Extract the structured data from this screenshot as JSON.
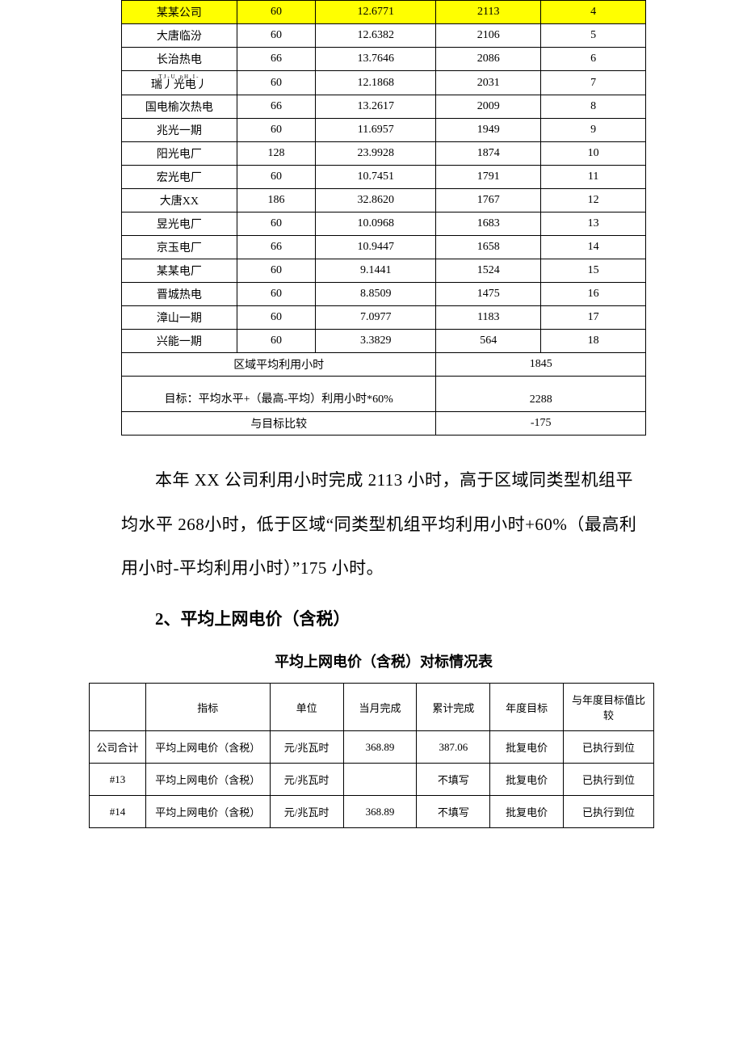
{
  "table1": {
    "rows": [
      {
        "name": "某某公司",
        "cap": "60",
        "gen": "12.6771",
        "hours": "2113",
        "rank": "4",
        "highlight": true
      },
      {
        "name": "大唐临汾",
        "cap": "60",
        "gen": "12.6382",
        "hours": "2106",
        "rank": "5"
      },
      {
        "name": "长治热电",
        "cap": "66",
        "gen": "13.7646",
        "hours": "2086",
        "rank": "6"
      },
      {
        "name_ruby": "TJ-U   pH I-",
        "name": "瑞丿光电丿",
        "cap": "60",
        "gen": "12.1868",
        "hours": "2031",
        "rank": "7"
      },
      {
        "name": "国电榆次热电",
        "cap": "66",
        "gen": "13.2617",
        "hours": "2009",
        "rank": "8"
      },
      {
        "name": "兆光一期",
        "cap": "60",
        "gen": "11.6957",
        "hours": "1949",
        "rank": "9"
      },
      {
        "name": "阳光电厂",
        "cap": "128",
        "gen": "23.9928",
        "hours": "1874",
        "rank": "10"
      },
      {
        "name": "宏光电厂",
        "cap": "60",
        "gen": "10.7451",
        "hours": "1791",
        "rank": "11"
      },
      {
        "name": "大唐XX",
        "cap": "186",
        "gen": "32.8620",
        "hours": "1767",
        "rank": "12"
      },
      {
        "name": "昱光电厂",
        "cap": "60",
        "gen": "10.0968",
        "hours": "1683",
        "rank": "13"
      },
      {
        "name": "京玉电厂",
        "cap": "66",
        "gen": "10.9447",
        "hours": "1658",
        "rank": "14"
      },
      {
        "name": "某某电厂",
        "cap": "60",
        "gen": "9.1441",
        "hours": "1524",
        "rank": "15"
      },
      {
        "name": "晋城热电",
        "cap": "60",
        "gen": "8.8509",
        "hours": "1475",
        "rank": "16"
      },
      {
        "name": "漳山一期",
        "cap": "60",
        "gen": "7.0977",
        "hours": "1183",
        "rank": "17"
      },
      {
        "name": "兴能一期",
        "cap": "60",
        "gen": "3.3829",
        "hours": "564",
        "rank": "18"
      }
    ],
    "summary": [
      {
        "label": "区域平均利用小时",
        "value": "1845",
        "tall": false
      },
      {
        "label": "目标：平均水平+（最高-平均）利用小时*60%",
        "value": "2288",
        "tall": true
      },
      {
        "label": "与目标比较",
        "value": "-175",
        "tall": false
      }
    ]
  },
  "paragraph": {
    "text": "本年 XX 公司利用小时完成 2113 小时，高于区域同类型机组平均水平 268小时，低于区域“同类型机组平均利用小时+60%（最高利用小时-平均利用小时）”175 小时。"
  },
  "section2": {
    "heading": "2、平均上网电价（含税）",
    "table_title": "平均上网电价（含税）对标情况表"
  },
  "table2": {
    "headers": [
      "",
      "指标",
      "单位",
      "当月完成",
      "累计完成",
      "年度目标",
      "与年度目标值比较"
    ],
    "rows": [
      {
        "c0": "公司合计",
        "c1": "平均上网电价（含税）",
        "c2": "元/兆瓦时",
        "c3": "368.89",
        "c4": "387.06",
        "c5": "批复电价",
        "c6": "已执行到位"
      },
      {
        "c0": "#13",
        "c1": "平均上网电价（含税）",
        "c2": "元/兆瓦时",
        "c3": "",
        "c4": "不填写",
        "c5": "批复电价",
        "c6": "已执行到位"
      },
      {
        "c0": "#14",
        "c1": "平均上网电价（含税）",
        "c2": "元/兆瓦时",
        "c3": "368.89",
        "c4": "不填写",
        "c5": "批复电价",
        "c6": "已执行到位"
      }
    ]
  }
}
